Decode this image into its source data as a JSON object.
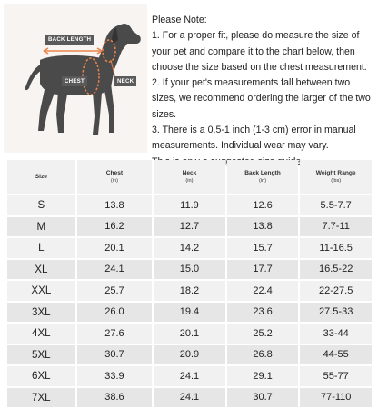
{
  "diagram": {
    "labels": {
      "back_length": "BACK LENGTH",
      "chest": "CHEST",
      "neck": "NECK"
    }
  },
  "note": {
    "title": "Please Note:",
    "items": [
      "1. For a proper fit, please do measure the size of your pet and compare it to the chart below, then choose the size based on the chest measurement.",
      "2. If your pet's measurements fall between two sizes, we recommend ordering the larger of the two sizes.",
      "3. There is a 0.5-1 inch (1-3 cm) error in manual measurements. Individual wear may vary.",
      "This is only a suggested size guide."
    ]
  },
  "table": {
    "headers": [
      {
        "label": "Size",
        "unit": ""
      },
      {
        "label": "Chest",
        "unit": "(in)"
      },
      {
        "label": "Neck",
        "unit": "(in)"
      },
      {
        "label": "Back Length",
        "unit": "(in)"
      },
      {
        "label": "Weight Range",
        "unit": "(lbs)"
      }
    ],
    "rows": [
      [
        "S",
        "13.8",
        "11.9",
        "12.6",
        "5.5-7.7"
      ],
      [
        "M",
        "16.2",
        "12.7",
        "13.8",
        "7.7-11"
      ],
      [
        "L",
        "20.1",
        "14.2",
        "15.7",
        "11-16.5"
      ],
      [
        "XL",
        "24.1",
        "15.0",
        "17.7",
        "16.5-22"
      ],
      [
        "XXL",
        "25.7",
        "18.2",
        "22.4",
        "22-27.5"
      ],
      [
        "3XL",
        "26.0",
        "19.4",
        "23.6",
        "27.5-33"
      ],
      [
        "4XL",
        "27.6",
        "20.1",
        "25.2",
        "33-44"
      ],
      [
        "5XL",
        "30.7",
        "20.9",
        "26.8",
        "44-55"
      ],
      [
        "6XL",
        "33.9",
        "24.1",
        "29.1",
        "55-77"
      ],
      [
        "7XL",
        "38.6",
        "24.1",
        "30.7",
        "77-110"
      ]
    ]
  },
  "colors": {
    "accent": "#e8864a",
    "dog": "#4a4a4a",
    "cell": "#f1f1f1",
    "cell_alt": "#e6e6e6"
  }
}
